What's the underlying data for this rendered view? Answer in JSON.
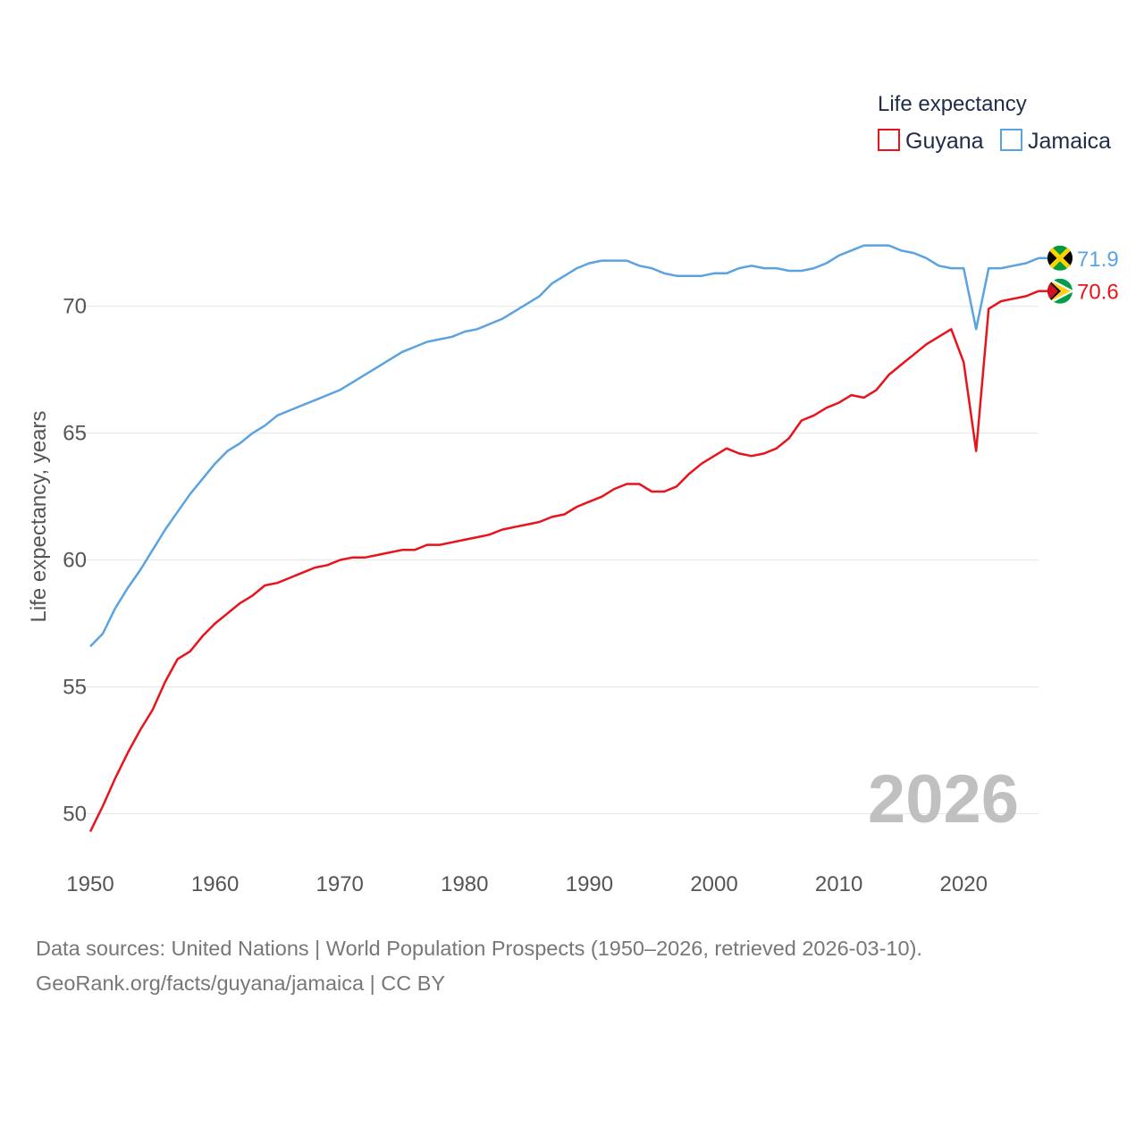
{
  "chart_data": {
    "type": "line",
    "title": "",
    "ylabel": "Life expectancy, years",
    "xlabel": "",
    "legend_title": "Life expectancy",
    "legend_position": "top-right",
    "xlim": [
      1950,
      2026
    ],
    "ylim": [
      47.8,
      73.9
    ],
    "grid": true,
    "x_ticks": [
      "1950",
      "1960",
      "1970",
      "1980",
      "1990",
      "2000",
      "2010",
      "2020"
    ],
    "y_ticks": [
      "50",
      "55",
      "60",
      "65",
      "70"
    ],
    "year_label": "2026",
    "x": [
      1950,
      1951,
      1952,
      1953,
      1954,
      1955,
      1956,
      1957,
      1958,
      1959,
      1960,
      1961,
      1962,
      1963,
      1964,
      1965,
      1966,
      1967,
      1968,
      1969,
      1970,
      1971,
      1972,
      1973,
      1974,
      1975,
      1976,
      1977,
      1978,
      1979,
      1980,
      1981,
      1982,
      1983,
      1984,
      1985,
      1986,
      1987,
      1988,
      1989,
      1990,
      1991,
      1992,
      1993,
      1994,
      1995,
      1996,
      1997,
      1998,
      1999,
      2000,
      2001,
      2002,
      2003,
      2004,
      2005,
      2006,
      2007,
      2008,
      2009,
      2010,
      2011,
      2012,
      2013,
      2014,
      2015,
      2016,
      2017,
      2018,
      2019,
      2020,
      2021,
      2022,
      2023,
      2024,
      2025,
      2026
    ],
    "series": [
      {
        "name": "Guyana",
        "color": "#e8141b",
        "end_label": "70.6",
        "flag": "guyana-flag-icon",
        "values": [
          49.3,
          50.3,
          51.4,
          52.4,
          53.3,
          54.1,
          55.2,
          56.1,
          56.4,
          57.0,
          57.5,
          57.9,
          58.3,
          58.6,
          59.0,
          59.1,
          59.3,
          59.5,
          59.7,
          59.8,
          60.0,
          60.1,
          60.1,
          60.2,
          60.3,
          60.4,
          60.4,
          60.6,
          60.6,
          60.7,
          60.8,
          60.9,
          61.0,
          61.2,
          61.3,
          61.4,
          61.5,
          61.7,
          61.8,
          62.1,
          62.3,
          62.5,
          62.8,
          63.0,
          63.0,
          62.7,
          62.7,
          62.9,
          63.4,
          63.8,
          64.1,
          64.4,
          64.2,
          64.1,
          64.2,
          64.4,
          64.8,
          65.5,
          65.7,
          66.0,
          66.2,
          66.5,
          66.4,
          66.7,
          67.3,
          67.7,
          68.1,
          68.5,
          68.8,
          69.1,
          67.8,
          64.3,
          69.9,
          70.2,
          70.3,
          70.4,
          70.6
        ]
      },
      {
        "name": "Jamaica",
        "color": "#5aa3e0",
        "end_label": "71.9",
        "flag": "jamaica-flag-icon",
        "values": [
          56.6,
          57.1,
          58.1,
          58.9,
          59.6,
          60.4,
          61.2,
          61.9,
          62.6,
          63.2,
          63.8,
          64.3,
          64.6,
          65.0,
          65.3,
          65.7,
          65.9,
          66.1,
          66.3,
          66.5,
          66.7,
          67.0,
          67.3,
          67.6,
          67.9,
          68.2,
          68.4,
          68.6,
          68.7,
          68.8,
          69.0,
          69.1,
          69.3,
          69.5,
          69.8,
          70.1,
          70.4,
          70.9,
          71.2,
          71.5,
          71.7,
          71.8,
          71.8,
          71.8,
          71.6,
          71.5,
          71.3,
          71.2,
          71.2,
          71.2,
          71.3,
          71.3,
          71.5,
          71.6,
          71.5,
          71.5,
          71.4,
          71.4,
          71.5,
          71.7,
          72.0,
          72.2,
          72.4,
          72.4,
          72.4,
          72.2,
          72.1,
          71.9,
          71.6,
          71.5,
          71.5,
          69.1,
          71.5,
          71.5,
          71.6,
          71.7,
          71.9
        ]
      }
    ]
  },
  "footer": {
    "line1": "Data sources: United Nations | World Population Prospects (1950–2026, retrieved 2026-03-10).",
    "line2": "GeoRank.org/facts/guyana/jamaica | CC BY"
  }
}
